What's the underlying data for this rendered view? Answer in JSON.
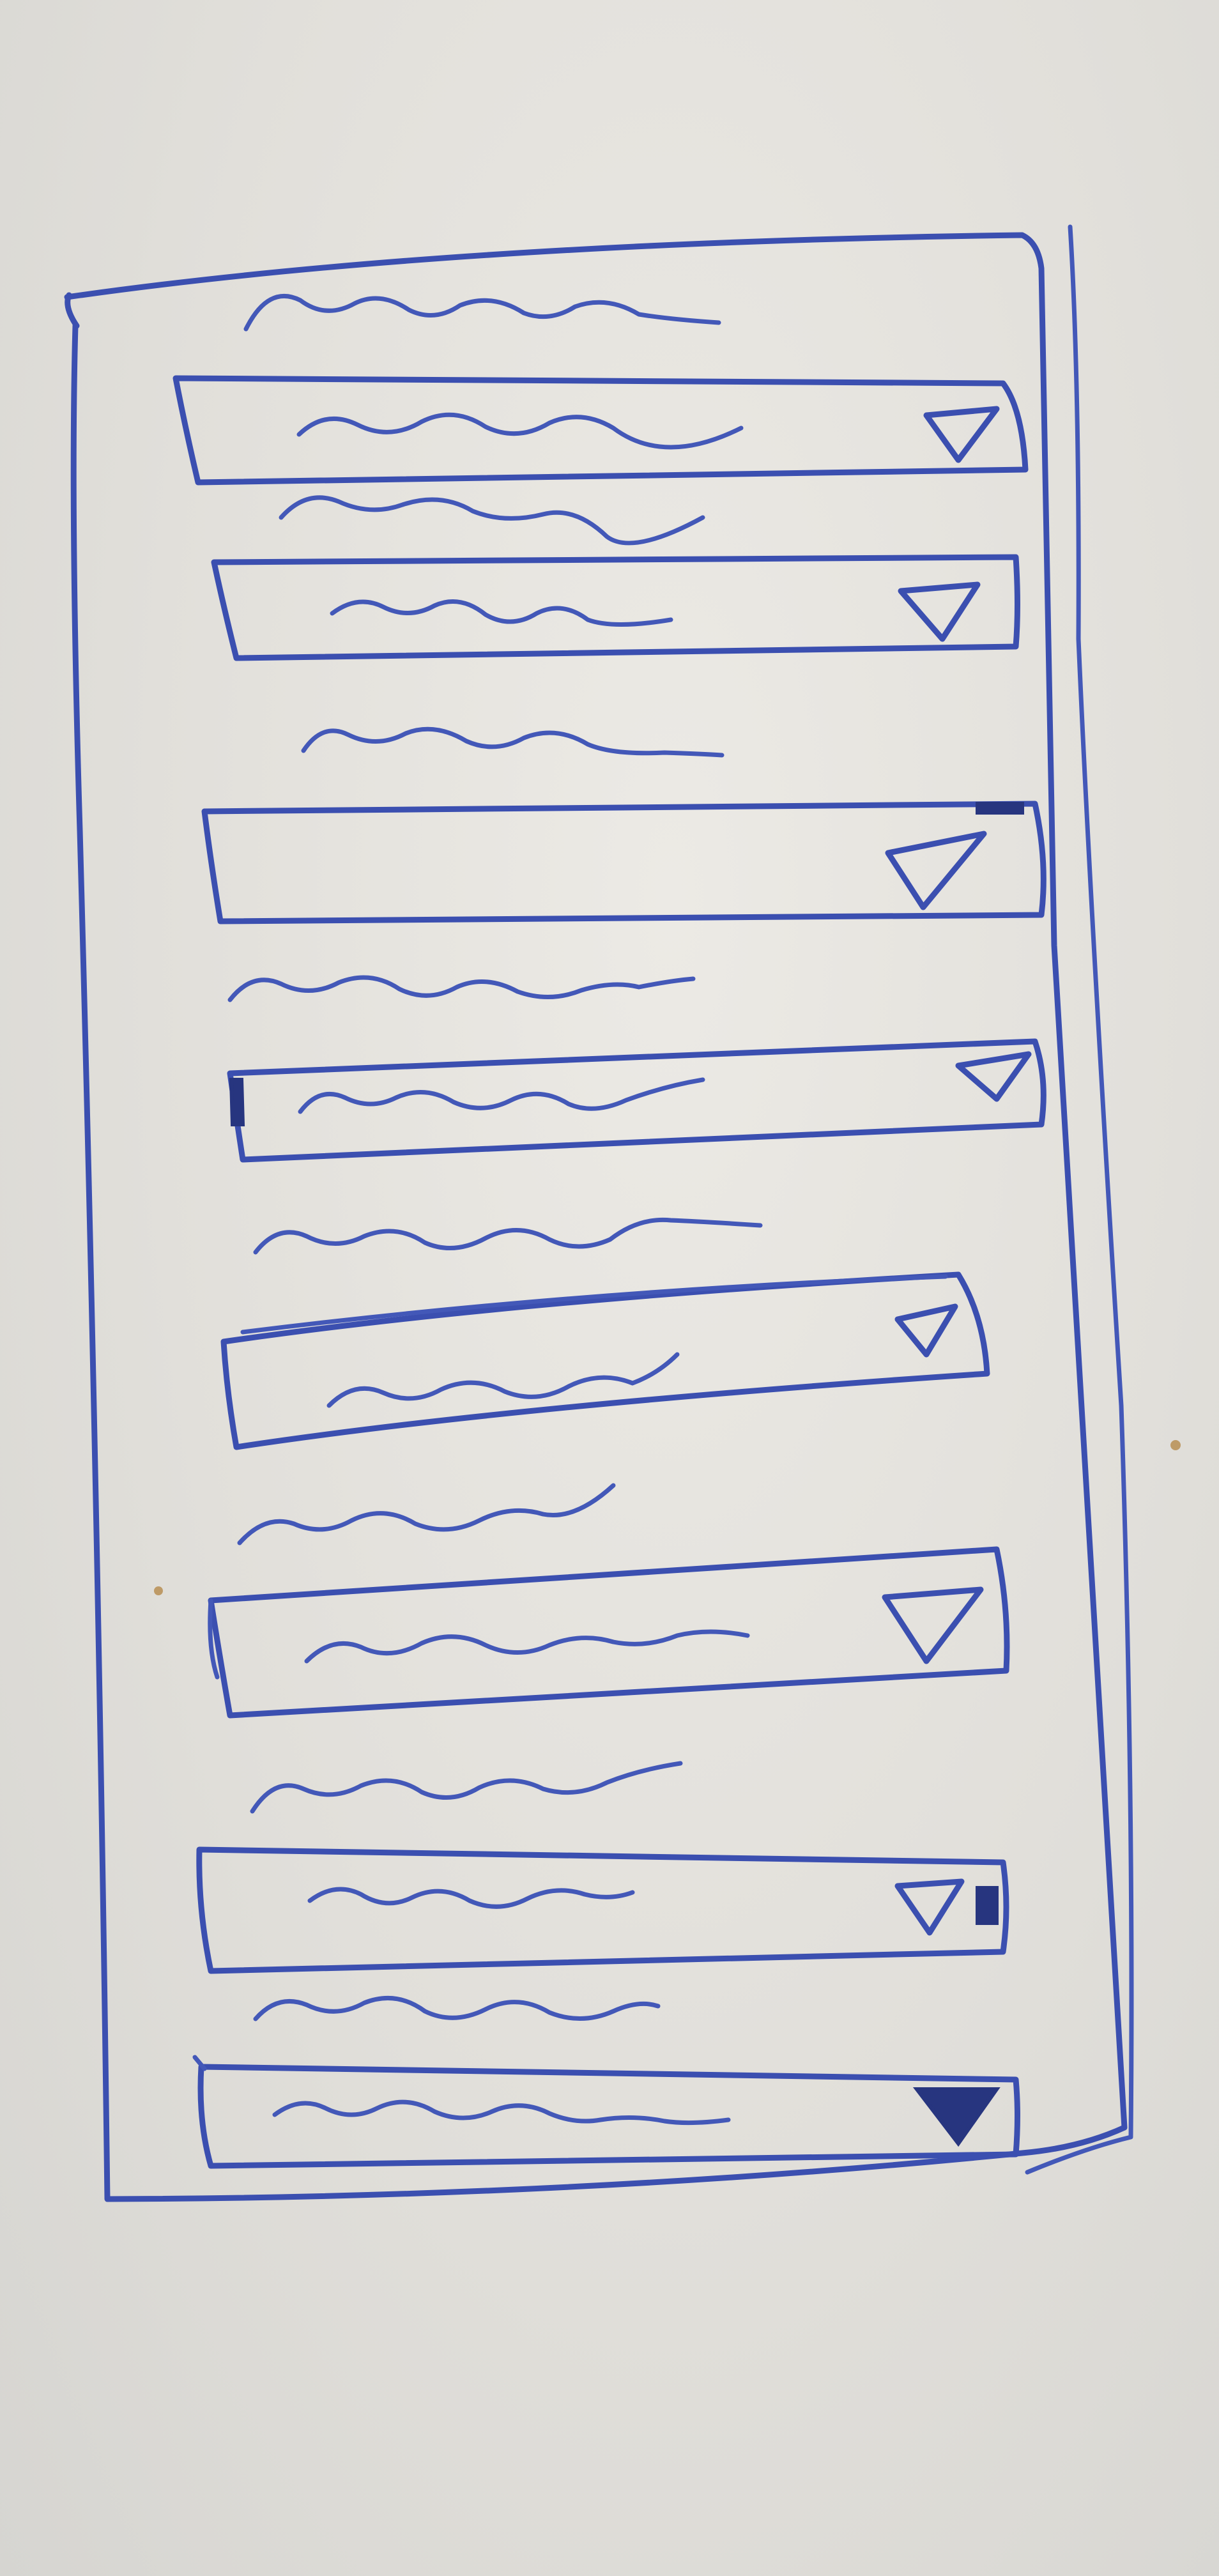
{
  "sketch": {
    "ink_color": "#3b4fb0",
    "paper_color": "#e3e1dc",
    "fields": [
      {
        "label": "",
        "value": "",
        "icon": "dropdown-triangle-icon"
      },
      {
        "label": "",
        "value": "",
        "icon": "dropdown-triangle-icon"
      },
      {
        "label": "",
        "value": "",
        "icon": "dropdown-triangle-icon"
      },
      {
        "label": "",
        "value": "",
        "icon": "dropdown-triangle-icon"
      },
      {
        "label": "",
        "value": "",
        "icon": "dropdown-triangle-icon"
      },
      {
        "label": "",
        "value": "",
        "icon": "dropdown-triangle-icon"
      },
      {
        "label": "",
        "value": "",
        "icon": "dropdown-triangle-icon"
      },
      {
        "label": "",
        "value": "",
        "icon": "dropdown-triangle-icon"
      }
    ]
  }
}
